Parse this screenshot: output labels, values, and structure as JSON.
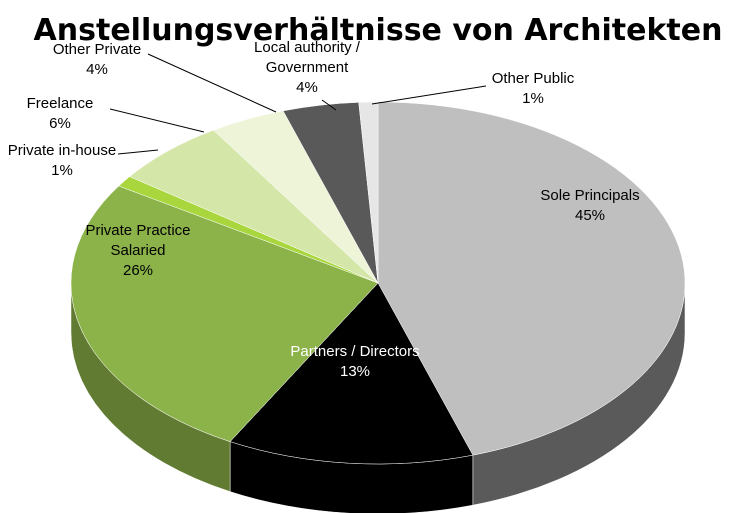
{
  "chart_data": {
    "type": "pie",
    "title": "Anstellungsverhältnisse von Architekten",
    "style": "3d",
    "legend": "none",
    "slices": [
      {
        "label": "Sole Principals",
        "value_label": "45%",
        "value": 45,
        "color": "#bfbfbf",
        "side_color": "#5a5a5a",
        "text_color": "#000000"
      },
      {
        "label": "Partners / Directors",
        "value_label": "13%",
        "value": 13,
        "color": "#000000",
        "side_color": "#000000",
        "text_color": "#ffffff"
      },
      {
        "label": "Private Practice Salaried",
        "value_label": "26%",
        "value": 26,
        "color": "#8cb34a",
        "side_color": "#617c32",
        "text_color": "#000000"
      },
      {
        "label": "Private in-house",
        "value_label": "1%",
        "value": 1,
        "color": "#a8d63c",
        "side_color": "#7a9c2c",
        "text_color": "#000000"
      },
      {
        "label": "Freelance",
        "value_label": "6%",
        "value": 6,
        "color": "#d4e6a8",
        "side_color": "#9fae7c",
        "text_color": "#000000"
      },
      {
        "label": "Other Private",
        "value_label": "4%",
        "value": 4,
        "color": "#eef4d8",
        "side_color": "#b3b8a0",
        "text_color": "#000000"
      },
      {
        "label": "Local authority / Government",
        "value_label": "4%",
        "value": 4,
        "color": "#595959",
        "side_color": "#3a3a3a",
        "text_color": "#000000"
      },
      {
        "label": "Other Public",
        "value_label": "1%",
        "value": 1,
        "color": "#e6e6e6",
        "side_color": "#a0a0a0",
        "text_color": "#000000"
      }
    ]
  }
}
